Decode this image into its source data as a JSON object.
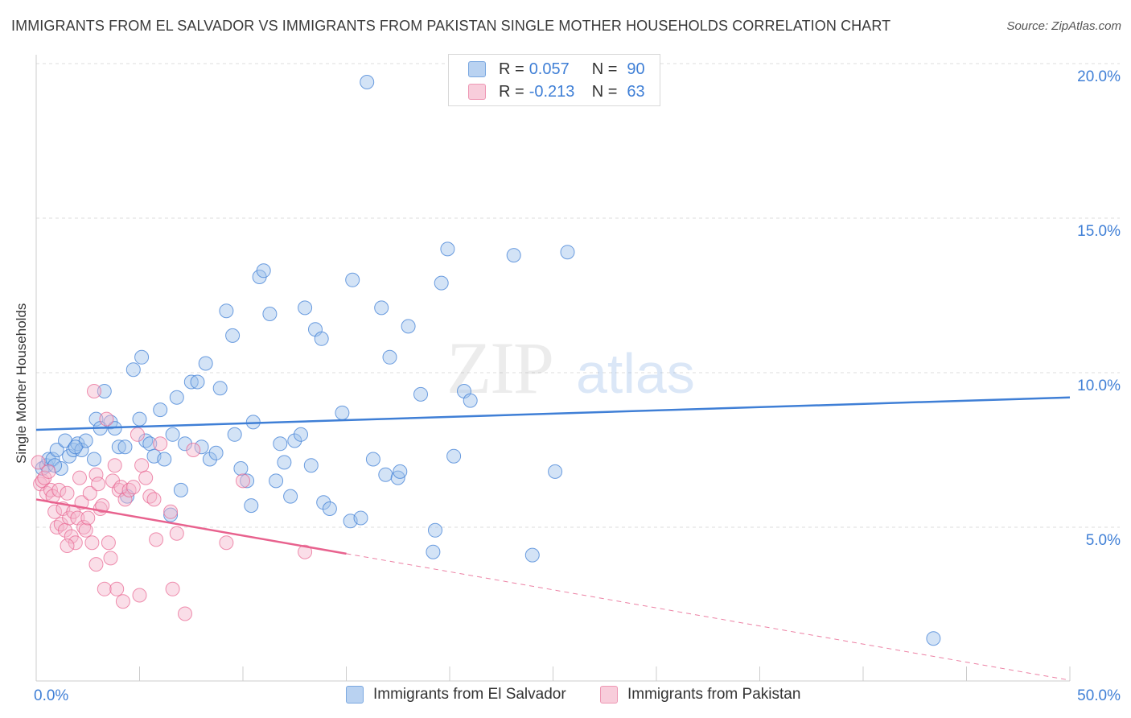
{
  "title": "IMMIGRANTS FROM EL SALVADOR VS IMMIGRANTS FROM PAKISTAN SINGLE MOTHER HOUSEHOLDS CORRELATION CHART",
  "source": "Source: ZipAtlas.com",
  "watermark": {
    "zip": "ZIP",
    "atlas": "atlas"
  },
  "legend": {
    "rows": [
      {
        "r_label": "R =",
        "r_value": "0.057",
        "n_label": "N =",
        "n_value": "90",
        "color": "#9ec1ec"
      },
      {
        "r_label": "R =",
        "r_value": "-0.213",
        "n_label": "N =",
        "n_value": "63",
        "color": "#f5b6cb"
      }
    ]
  },
  "colors": {
    "blue": "#3f7fd6",
    "blue_fill": "#9ec1ec",
    "pink": "#e8628e",
    "pink_fill": "#f5b6cb",
    "axis_text": "#3f7fd6",
    "grid": "#dddddd"
  },
  "chart_data": {
    "type": "scatter",
    "title": "IMMIGRANTS FROM EL SALVADOR VS IMMIGRANTS FROM PAKISTAN SINGLE MOTHER HOUSEHOLDS CORRELATION CHART",
    "xlabel": "",
    "ylabel": "Single Mother Households",
    "xlim": [
      0,
      50
    ],
    "ylim": [
      0,
      20.5
    ],
    "x_tick_labels": [
      "0.0%",
      "50.0%"
    ],
    "y_tick_labels": [
      "5.0%",
      "10.0%",
      "15.0%",
      "20.0%"
    ],
    "y_ticks": [
      5,
      10,
      15,
      20
    ],
    "grid": true,
    "legend_position": "top-center",
    "series": [
      {
        "name": "Immigrants from El Salvador",
        "color": "#3f7fd6",
        "trend": {
          "x": [
            0,
            50
          ],
          "y": [
            8.15,
            9.2
          ],
          "dashed_after": null
        },
        "points": [
          [
            0.3,
            6.9
          ],
          [
            0.5,
            7.0
          ],
          [
            0.6,
            7.2
          ],
          [
            0.8,
            7.2
          ],
          [
            1.0,
            7.5
          ],
          [
            1.2,
            6.9
          ],
          [
            1.4,
            7.8
          ],
          [
            1.6,
            7.3
          ],
          [
            1.8,
            7.5
          ],
          [
            2.0,
            7.7
          ],
          [
            2.2,
            7.5
          ],
          [
            2.4,
            7.8
          ],
          [
            2.8,
            7.2
          ],
          [
            2.9,
            8.5
          ],
          [
            3.1,
            8.2
          ],
          [
            3.3,
            9.4
          ],
          [
            3.6,
            8.4
          ],
          [
            3.8,
            8.2
          ],
          [
            4.0,
            7.6
          ],
          [
            4.3,
            7.6
          ],
          [
            4.4,
            6.0
          ],
          [
            4.7,
            10.1
          ],
          [
            5.0,
            8.5
          ],
          [
            5.1,
            10.5
          ],
          [
            5.3,
            7.8
          ],
          [
            5.5,
            7.7
          ],
          [
            5.7,
            7.3
          ],
          [
            6.0,
            8.8
          ],
          [
            6.2,
            7.2
          ],
          [
            6.5,
            5.4
          ],
          [
            6.6,
            8.0
          ],
          [
            6.8,
            9.2
          ],
          [
            7.0,
            6.2
          ],
          [
            7.2,
            7.7
          ],
          [
            7.5,
            9.7
          ],
          [
            7.8,
            9.7
          ],
          [
            8.0,
            7.6
          ],
          [
            8.2,
            10.3
          ],
          [
            8.4,
            7.2
          ],
          [
            8.7,
            7.4
          ],
          [
            8.9,
            9.5
          ],
          [
            9.2,
            12.0
          ],
          [
            9.5,
            11.2
          ],
          [
            9.6,
            8.0
          ],
          [
            9.9,
            6.9
          ],
          [
            10.2,
            6.5
          ],
          [
            10.4,
            5.7
          ],
          [
            10.5,
            8.4
          ],
          [
            10.8,
            13.1
          ],
          [
            11.0,
            13.3
          ],
          [
            11.3,
            11.9
          ],
          [
            11.6,
            6.5
          ],
          [
            11.8,
            7.7
          ],
          [
            12.0,
            7.1
          ],
          [
            12.3,
            6.0
          ],
          [
            12.5,
            7.8
          ],
          [
            12.8,
            8.0
          ],
          [
            13.0,
            12.1
          ],
          [
            13.3,
            7.0
          ],
          [
            13.5,
            11.4
          ],
          [
            13.8,
            11.1
          ],
          [
            13.9,
            5.8
          ],
          [
            14.2,
            5.6
          ],
          [
            14.8,
            8.7
          ],
          [
            15.2,
            5.2
          ],
          [
            15.3,
            13.0
          ],
          [
            15.7,
            5.3
          ],
          [
            16.0,
            19.4
          ],
          [
            16.3,
            7.2
          ],
          [
            16.7,
            12.1
          ],
          [
            16.9,
            6.7
          ],
          [
            17.1,
            10.5
          ],
          [
            17.5,
            6.6
          ],
          [
            17.6,
            6.8
          ],
          [
            18.0,
            11.5
          ],
          [
            18.6,
            9.3
          ],
          [
            19.2,
            4.2
          ],
          [
            19.3,
            4.9
          ],
          [
            19.6,
            12.9
          ],
          [
            19.9,
            14.0
          ],
          [
            20.2,
            7.3
          ],
          [
            20.7,
            9.4
          ],
          [
            21.0,
            9.1
          ],
          [
            23.1,
            13.8
          ],
          [
            24.0,
            4.1
          ],
          [
            25.1,
            6.8
          ],
          [
            25.7,
            13.9
          ],
          [
            43.4,
            1.4
          ],
          [
            1.9,
            7.6
          ],
          [
            0.9,
            7.0
          ]
        ]
      },
      {
        "name": "Immigrants from Pakistan",
        "color": "#e8628e",
        "trend": {
          "x": [
            0,
            50
          ],
          "y": [
            5.9,
            0.05
          ],
          "solid_until": 15
        },
        "points": [
          [
            0.1,
            7.1
          ],
          [
            0.2,
            6.4
          ],
          [
            0.3,
            6.5
          ],
          [
            0.4,
            6.6
          ],
          [
            0.5,
            6.1
          ],
          [
            0.6,
            6.8
          ],
          [
            0.7,
            6.2
          ],
          [
            0.8,
            6.0
          ],
          [
            0.9,
            5.5
          ],
          [
            1.0,
            5.0
          ],
          [
            1.1,
            6.2
          ],
          [
            1.2,
            5.1
          ],
          [
            1.3,
            5.6
          ],
          [
            1.4,
            4.9
          ],
          [
            1.5,
            6.1
          ],
          [
            1.6,
            5.3
          ],
          [
            1.7,
            4.7
          ],
          [
            1.8,
            5.5
          ],
          [
            1.9,
            4.5
          ],
          [
            2.0,
            5.3
          ],
          [
            2.1,
            6.6
          ],
          [
            2.2,
            5.8
          ],
          [
            2.3,
            5.0
          ],
          [
            2.4,
            4.9
          ],
          [
            2.5,
            5.3
          ],
          [
            2.6,
            6.1
          ],
          [
            2.7,
            4.5
          ],
          [
            2.8,
            9.4
          ],
          [
            2.9,
            6.7
          ],
          [
            3.0,
            6.4
          ],
          [
            3.1,
            5.6
          ],
          [
            3.2,
            5.7
          ],
          [
            3.3,
            3.0
          ],
          [
            3.4,
            8.5
          ],
          [
            3.5,
            4.5
          ],
          [
            3.6,
            4.0
          ],
          [
            3.7,
            6.5
          ],
          [
            3.8,
            7.0
          ],
          [
            3.9,
            3.0
          ],
          [
            4.0,
            6.2
          ],
          [
            4.1,
            6.3
          ],
          [
            4.2,
            2.6
          ],
          [
            4.3,
            5.9
          ],
          [
            4.5,
            6.2
          ],
          [
            4.7,
            6.3
          ],
          [
            4.9,
            8.0
          ],
          [
            5.0,
            2.8
          ],
          [
            5.1,
            7.0
          ],
          [
            5.3,
            6.6
          ],
          [
            5.5,
            6.0
          ],
          [
            5.7,
            5.9
          ],
          [
            5.8,
            4.6
          ],
          [
            6.0,
            7.7
          ],
          [
            6.5,
            5.5
          ],
          [
            6.6,
            3.0
          ],
          [
            6.8,
            4.8
          ],
          [
            7.2,
            2.2
          ],
          [
            7.6,
            7.5
          ],
          [
            9.2,
            4.5
          ],
          [
            10.0,
            6.5
          ],
          [
            13.0,
            4.2
          ],
          [
            1.5,
            4.4
          ],
          [
            2.9,
            3.8
          ]
        ]
      }
    ]
  },
  "bottom_legend": [
    "Immigrants from El Salvador",
    "Immigrants from Pakistan"
  ]
}
